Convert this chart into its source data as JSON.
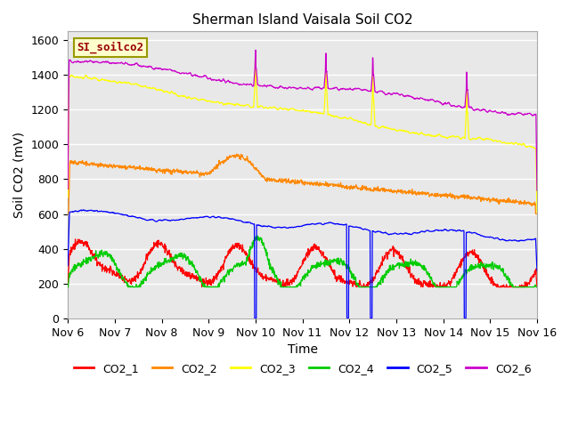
{
  "title": "Sherman Island Vaisala Soil CO2",
  "xlabel": "Time",
  "ylabel": "Soil CO2 (mV)",
  "ylim": [
    0,
    1650
  ],
  "yticks": [
    0,
    200,
    400,
    600,
    800,
    1000,
    1200,
    1400,
    1600
  ],
  "xtick_labels": [
    "Nov 6",
    "Nov 7",
    "Nov 8",
    "Nov 9",
    "Nov 10",
    "Nov 11",
    "Nov 12",
    "Nov 13",
    "Nov 14",
    "Nov 15",
    "Nov 16"
  ],
  "colors": {
    "CO2_1": "#ff0000",
    "CO2_2": "#ff8800",
    "CO2_3": "#ffff00",
    "CO2_4": "#00cc00",
    "CO2_5": "#0000ff",
    "CO2_6": "#cc00cc"
  },
  "legend_label": "SI_soilco2",
  "legend_bg": "#ffffcc",
  "legend_border": "#999900",
  "legend_text_color": "#990000",
  "fig_bg": "#ffffff",
  "plot_bg": "#e8e8e8",
  "grid_color": "#ffffff",
  "title_fontsize": 11,
  "axis_fontsize": 9,
  "label_fontsize": 10
}
